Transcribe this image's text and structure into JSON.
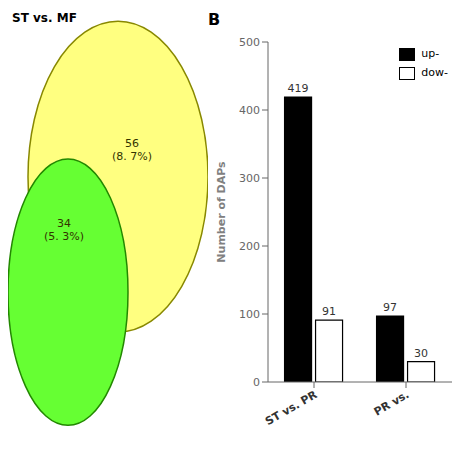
{
  "chart_data": [
    {
      "type": "venn",
      "title": "ST vs. MF",
      "annotations": [
        "56\n(8. 7%)",
        "34\n(5. 3%)"
      ],
      "colors": [
        "#FFFF80",
        "#66FF33"
      ]
    },
    {
      "type": "bar",
      "title": "B",
      "categories": [
        "ST vs. PR",
        "PR vs."
      ],
      "series": [
        {
          "name": "up-",
          "color": "#000000",
          "values": [
            419,
            97
          ]
        },
        {
          "name": "dow-",
          "color": "#ffffff",
          "values": [
            91,
            30
          ]
        }
      ],
      "ylabel": "Number of  DAPs",
      "ylim": [
        0,
        500
      ],
      "yticks": [
        0,
        100,
        200,
        300,
        400,
        500
      ],
      "data_labels": true,
      "legend": "upper right",
      "grid": false
    }
  ]
}
